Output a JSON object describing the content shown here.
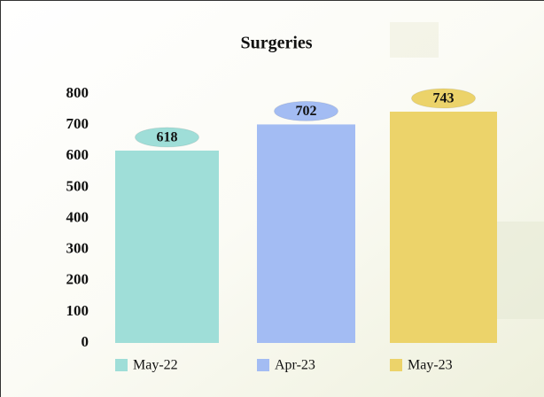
{
  "chart_data": {
    "type": "bar",
    "title": "Surgeries",
    "categories": [
      "May-22",
      "Apr-23",
      "May-23"
    ],
    "values": [
      618,
      702,
      743
    ],
    "colors": [
      "#9fded8",
      "#a3bcf3",
      "#ecd36a"
    ],
    "ylim": [
      0,
      800
    ],
    "yticks": [
      0,
      100,
      200,
      300,
      400,
      500,
      600,
      700,
      800
    ],
    "grid": false,
    "legend": "bottom"
  }
}
